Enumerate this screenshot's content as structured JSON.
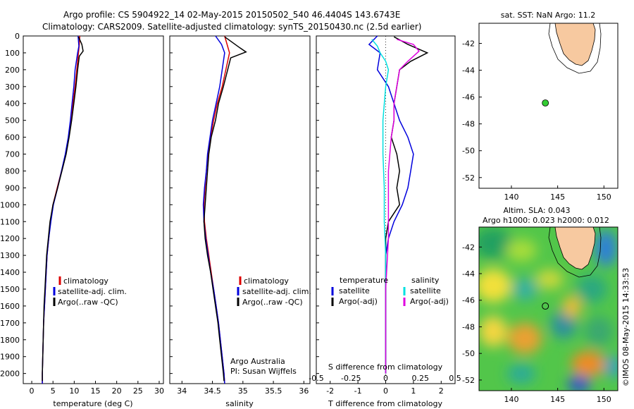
{
  "header": {
    "title_line1": "Argo profile: CS 5904922_14 02-May-2015 20150502_540 46.4404S 143.6743E",
    "title_line2": "Climatology: CARS2009. Satellite-adjusted climatology: synTS_20150430.nc (2.5d earlier)"
  },
  "side_text": "©IMOS 08-May-2015 14:33:53",
  "colors": {
    "climatology": "#dd0000",
    "satellite": "#0000dd",
    "argo": "#000000",
    "sat_salinity": "#00e0e0",
    "argo_salinity": "#e000e0",
    "land": "#f7c9a0",
    "float_marker": "#33cc33"
  },
  "chart_data": [
    {
      "type": "line",
      "xlabel": "temperature (deg C)",
      "ylabel": "",
      "xlim": [
        -2,
        31
      ],
      "ylim": [
        2060,
        0
      ],
      "xticks": [
        0,
        5,
        10,
        15,
        20,
        25,
        30
      ],
      "yticks": [
        0,
        100,
        200,
        300,
        400,
        500,
        600,
        700,
        800,
        900,
        1000,
        1100,
        1200,
        1300,
        1400,
        1500,
        1600,
        1700,
        1800,
        1900,
        2000
      ],
      "legend": {
        "position": "lower-center",
        "entries": [
          "climatology",
          "satellite-adj. clim.",
          "Argo(..raw -QC)"
        ]
      },
      "series": [
        {
          "name": "climatology",
          "color": "#dd0000",
          "points": [
            [
              11.3,
              0
            ],
            [
              11.2,
              50
            ],
            [
              11.0,
              100
            ],
            [
              10.6,
              200
            ],
            [
              10.2,
              300
            ],
            [
              9.7,
              400
            ],
            [
              9.2,
              500
            ],
            [
              8.7,
              600
            ],
            [
              8.0,
              700
            ],
            [
              7.0,
              800
            ],
            [
              6.0,
              900
            ],
            [
              5.0,
              1000
            ],
            [
              4.4,
              1100
            ],
            [
              4.0,
              1200
            ],
            [
              3.6,
              1300
            ],
            [
              3.4,
              1400
            ],
            [
              3.2,
              1500
            ],
            [
              3.0,
              1600
            ],
            [
              2.8,
              1700
            ],
            [
              2.7,
              1800
            ],
            [
              2.6,
              1900
            ],
            [
              2.5,
              2000
            ],
            [
              2.5,
              2060
            ]
          ]
        },
        {
          "name": "satellite-adj. clim.",
          "color": "#0000dd",
          "points": [
            [
              10.9,
              0
            ],
            [
              11.1,
              60
            ],
            [
              10.8,
              100
            ],
            [
              10.2,
              200
            ],
            [
              9.9,
              300
            ],
            [
              9.5,
              400
            ],
            [
              9.1,
              500
            ],
            [
              8.6,
              600
            ],
            [
              7.9,
              700
            ],
            [
              7.0,
              800
            ],
            [
              6.1,
              900
            ],
            [
              5.1,
              1000
            ],
            [
              4.5,
              1100
            ],
            [
              4.0,
              1200
            ],
            [
              3.6,
              1300
            ],
            [
              3.4,
              1400
            ],
            [
              3.2,
              1500
            ],
            [
              3.0,
              1600
            ],
            [
              2.8,
              1700
            ],
            [
              2.7,
              1800
            ],
            [
              2.6,
              1900
            ],
            [
              2.5,
              2000
            ],
            [
              2.5,
              2060
            ]
          ]
        },
        {
          "name": "Argo(..raw -QC)",
          "color": "#000000",
          "points": [
            [
              11.0,
              5
            ],
            [
              11.8,
              50
            ],
            [
              12.1,
              90
            ],
            [
              11.2,
              120
            ],
            [
              10.8,
              200
            ],
            [
              10.4,
              300
            ],
            [
              9.9,
              400
            ],
            [
              9.4,
              500
            ],
            [
              8.8,
              600
            ],
            [
              8.1,
              700
            ],
            [
              7.1,
              800
            ],
            [
              6.1,
              900
            ],
            [
              5.0,
              1000
            ],
            [
              4.3,
              1100
            ],
            [
              3.9,
              1200
            ],
            [
              3.5,
              1300
            ],
            [
              3.3,
              1400
            ],
            [
              3.1,
              1500
            ],
            [
              2.9,
              1600
            ],
            [
              2.8,
              1700
            ],
            [
              2.7,
              1800
            ],
            [
              2.6,
              1900
            ],
            [
              2.5,
              2000
            ],
            [
              2.5,
              2045
            ]
          ]
        }
      ]
    },
    {
      "type": "line",
      "xlabel": "salinity",
      "ylabel": "",
      "xlim": [
        33.8,
        36.1
      ],
      "ylim": [
        2060,
        0
      ],
      "xticks": [
        34,
        34.5,
        35,
        35.5,
        36
      ],
      "legend": {
        "position": "lower-right",
        "entries": [
          "climatology",
          "satellite-adj. clim.",
          "Argo(..raw -QC)"
        ]
      },
      "annotations": [
        "Argo Australia",
        "PI: Susan Wijffels"
      ],
      "series": [
        {
          "name": "climatology",
          "color": "#dd0000",
          "points": [
            [
              34.7,
              0
            ],
            [
              34.78,
              100
            ],
            [
              34.72,
              200
            ],
            [
              34.66,
              300
            ],
            [
              34.58,
              400
            ],
            [
              34.52,
              500
            ],
            [
              34.47,
              600
            ],
            [
              34.43,
              700
            ],
            [
              34.4,
              800
            ],
            [
              34.38,
              900
            ],
            [
              34.36,
              1000
            ],
            [
              34.37,
              1100
            ],
            [
              34.4,
              1200
            ],
            [
              34.44,
              1300
            ],
            [
              34.48,
              1400
            ],
            [
              34.52,
              1500
            ],
            [
              34.56,
              1600
            ],
            [
              34.6,
              1700
            ],
            [
              34.63,
              1800
            ],
            [
              34.66,
              1900
            ],
            [
              34.69,
              2000
            ],
            [
              34.7,
              2060
            ]
          ]
        },
        {
          "name": "satellite-adj. clim.",
          "color": "#0000dd",
          "points": [
            [
              34.55,
              0
            ],
            [
              34.65,
              50
            ],
            [
              34.7,
              100
            ],
            [
              34.66,
              200
            ],
            [
              34.62,
              300
            ],
            [
              34.56,
              400
            ],
            [
              34.5,
              500
            ],
            [
              34.46,
              600
            ],
            [
              34.42,
              700
            ],
            [
              34.4,
              800
            ],
            [
              34.37,
              900
            ],
            [
              34.35,
              1000
            ],
            [
              34.36,
              1100
            ],
            [
              34.39,
              1200
            ],
            [
              34.43,
              1300
            ],
            [
              34.47,
              1400
            ],
            [
              34.52,
              1500
            ],
            [
              34.56,
              1600
            ],
            [
              34.6,
              1700
            ],
            [
              34.63,
              1800
            ],
            [
              34.66,
              1900
            ],
            [
              34.69,
              2000
            ],
            [
              34.7,
              2060
            ]
          ]
        },
        {
          "name": "Argo(..raw -QC)",
          "color": "#000000",
          "points": [
            [
              34.7,
              5
            ],
            [
              34.95,
              70
            ],
            [
              35.05,
              95
            ],
            [
              34.8,
              130
            ],
            [
              34.75,
              200
            ],
            [
              34.68,
              300
            ],
            [
              34.6,
              400
            ],
            [
              34.55,
              500
            ],
            [
              34.48,
              600
            ],
            [
              34.44,
              700
            ],
            [
              34.42,
              800
            ],
            [
              34.4,
              900
            ],
            [
              34.38,
              1000
            ],
            [
              34.36,
              1100
            ],
            [
              34.38,
              1200
            ],
            [
              34.42,
              1300
            ],
            [
              34.47,
              1400
            ],
            [
              34.51,
              1500
            ],
            [
              34.55,
              1600
            ],
            [
              34.59,
              1700
            ],
            [
              34.62,
              1800
            ],
            [
              34.65,
              1900
            ],
            [
              34.68,
              2000
            ],
            [
              34.69,
              2045
            ]
          ]
        }
      ]
    },
    {
      "type": "line",
      "xlabel": "T difference from climatology",
      "xlabel_top": "S difference from climatology",
      "ylabel": "",
      "xlim": [
        -2.5,
        2.5
      ],
      "ylim": [
        2060,
        0
      ],
      "xticks_bottom": [
        -2,
        -1,
        0,
        1,
        2
      ],
      "xticks_top_labels": [
        "-0.5",
        "-0.25",
        "0",
        "0.25",
        "0.5"
      ],
      "legend": {
        "position": "lower-center",
        "columns": [
          {
            "heading": "temperature",
            "entries": [
              "satellite",
              "Argo(-adj)"
            ]
          },
          {
            "heading": "salinity",
            "entries": [
              "satellite",
              "Argo(-adj)"
            ]
          }
        ]
      },
      "series": [
        {
          "name": "satellite",
          "quantity": "temperature",
          "color": "#0000dd",
          "points": [
            [
              -0.3,
              0
            ],
            [
              -0.6,
              50
            ],
            [
              -0.2,
              100
            ],
            [
              -0.3,
              200
            ],
            [
              0.1,
              300
            ],
            [
              0.3,
              400
            ],
            [
              0.5,
              500
            ],
            [
              0.8,
              600
            ],
            [
              1.0,
              700
            ],
            [
              0.9,
              800
            ],
            [
              0.8,
              900
            ],
            [
              0.6,
              1000
            ],
            [
              0.3,
              1100
            ],
            [
              0.1,
              1200
            ],
            [
              0.0,
              1300
            ],
            [
              0.0,
              1500
            ],
            [
              0.0,
              2000
            ]
          ]
        },
        {
          "name": "Argo(-adj)",
          "quantity": "temperature",
          "color": "#000000",
          "points": [
            [
              0.3,
              5
            ],
            [
              0.8,
              50
            ],
            [
              1.5,
              100
            ],
            [
              0.9,
              150
            ],
            [
              0.5,
              200
            ],
            [
              0.4,
              300
            ],
            [
              0.3,
              400
            ],
            [
              0.3,
              500
            ],
            [
              0.2,
              600
            ],
            [
              0.4,
              700
            ],
            [
              0.5,
              800
            ],
            [
              0.4,
              900
            ],
            [
              0.5,
              1000
            ],
            [
              0.1,
              1100
            ],
            [
              0.0,
              1200
            ],
            [
              0.0,
              1500
            ],
            [
              0.0,
              2000
            ]
          ]
        },
        {
          "name": "satellite",
          "quantity": "salinity",
          "color": "#00e0e0",
          "points": [
            [
              -0.5,
              20
            ],
            [
              -0.3,
              60
            ],
            [
              -0.2,
              100
            ],
            [
              0.0,
              150
            ],
            [
              0.1,
              200
            ],
            [
              0.0,
              300
            ],
            [
              -0.1,
              500
            ],
            [
              -0.1,
              700
            ],
            [
              -0.05,
              900
            ],
            [
              -0.05,
              1100
            ],
            [
              0.0,
              1300
            ],
            [
              0.0,
              1500
            ],
            [
              0.0,
              2000
            ]
          ]
        },
        {
          "name": "Argo(-adj)",
          "quantity": "salinity",
          "color": "#e000e0",
          "points": [
            [
              0.4,
              20
            ],
            [
              1.0,
              50
            ],
            [
              1.2,
              90
            ],
            [
              0.8,
              150
            ],
            [
              0.5,
              200
            ],
            [
              0.4,
              300
            ],
            [
              0.3,
              400
            ],
            [
              0.3,
              500
            ],
            [
              0.2,
              600
            ],
            [
              0.1,
              800
            ],
            [
              0.1,
              1000
            ],
            [
              0.1,
              1200
            ],
            [
              0.0,
              1500
            ],
            [
              0.0,
              2000
            ]
          ]
        }
      ]
    }
  ],
  "map_sst": {
    "title": "sat. SST: NaN Argo: 11.2",
    "xlim": [
      136.5,
      151.5
    ],
    "ylim": [
      -52.8,
      -40.5
    ],
    "xticks": [
      140,
      145,
      150
    ],
    "yticks": [
      -42,
      -44,
      -46,
      -48,
      -50,
      -52
    ],
    "float_position": {
      "lon": 143.67,
      "lat": -46.44
    }
  },
  "map_sla": {
    "title_line1": "Altim. SLA: 0.043",
    "title_line2": "Argo h1000: 0.023 h2000: 0.012",
    "xlim": [
      136.5,
      151.5
    ],
    "ylim": [
      -52.8,
      -40.5
    ],
    "xticks": [
      140,
      145,
      150
    ],
    "yticks": [
      -42,
      -44,
      -46,
      -48,
      -50,
      -52
    ],
    "float_position": {
      "lon": 143.67,
      "lat": -46.44
    }
  }
}
